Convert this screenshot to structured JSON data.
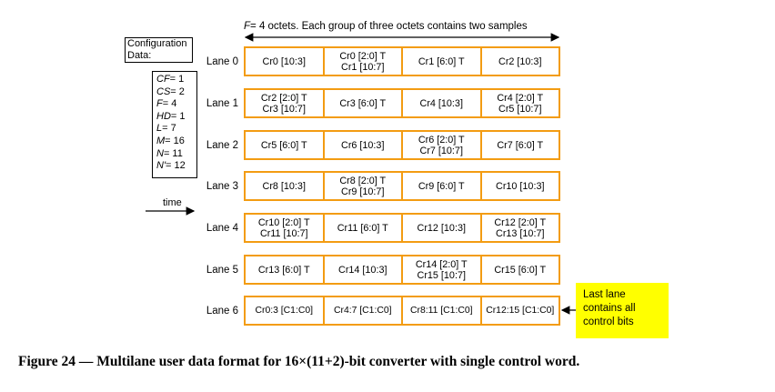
{
  "header": {
    "f_symbol": "F",
    "text": "= 4 octets. Each group of three octets contains two samples"
  },
  "config": {
    "title": "Configuration\nData:",
    "params": [
      "CF= 1",
      "CS= 2",
      "F= 4",
      "HD= 1",
      "L= 7",
      "M= 16",
      "N= 11",
      "N'= 12"
    ]
  },
  "time_label": "time",
  "lanes": [
    {
      "label": "Lane 0",
      "cells": [
        "Cr0 [10:3]",
        "Cr0 [2:0] T\nCr1 [10:7]",
        "Cr1 [6:0] T",
        "Cr2 [10:3]"
      ]
    },
    {
      "label": "Lane 1",
      "cells": [
        "Cr2 [2:0] T\nCr3 [10:7]",
        "Cr3 [6:0] T",
        "Cr4 [10:3]",
        "Cr4 [2:0] T\nCr5 [10:7]"
      ]
    },
    {
      "label": "Lane 2",
      "cells": [
        "Cr5 [6:0] T",
        "Cr6 [10:3]",
        "Cr6 [2:0] T\nCr7 [10:7]",
        "Cr7 [6:0] T"
      ]
    },
    {
      "label": "Lane 3",
      "cells": [
        "Cr8 [10:3]",
        "Cr8 [2:0] T\nCr9 [10:7]",
        "Cr9 [6:0] T",
        "Cr10 [10:3]"
      ]
    },
    {
      "label": "Lane 4",
      "cells": [
        "Cr10 [2:0] T\nCr11 [10:7]",
        "Cr11 [6:0] T",
        "Cr12 [10:3]",
        "Cr12 [2:0] T\nCr13 [10:7]"
      ]
    },
    {
      "label": "Lane 5",
      "cells": [
        "Cr13 [6:0] T",
        "Cr14 [10:3]",
        "Cr14 [2:0] T\nCr15 [10:7]",
        "Cr15 [6:0] T"
      ]
    },
    {
      "label": "Lane 6",
      "cells": [
        "Cr0:3 [C1:C0]",
        "Cr4:7 [C1:C0]",
        "Cr8:11 [C1:C0]",
        "Cr12:15 [C1:C0]"
      ]
    }
  ],
  "note": {
    "line1": "Last lane",
    "line2": "contains all",
    "line3": "control bits"
  },
  "caption": "Figure 24 — Multilane user data format for 16×(11+2)-bit converter with single control word.",
  "colors": {
    "lane_border": "#f39c12",
    "note_background": "#ffff00"
  }
}
